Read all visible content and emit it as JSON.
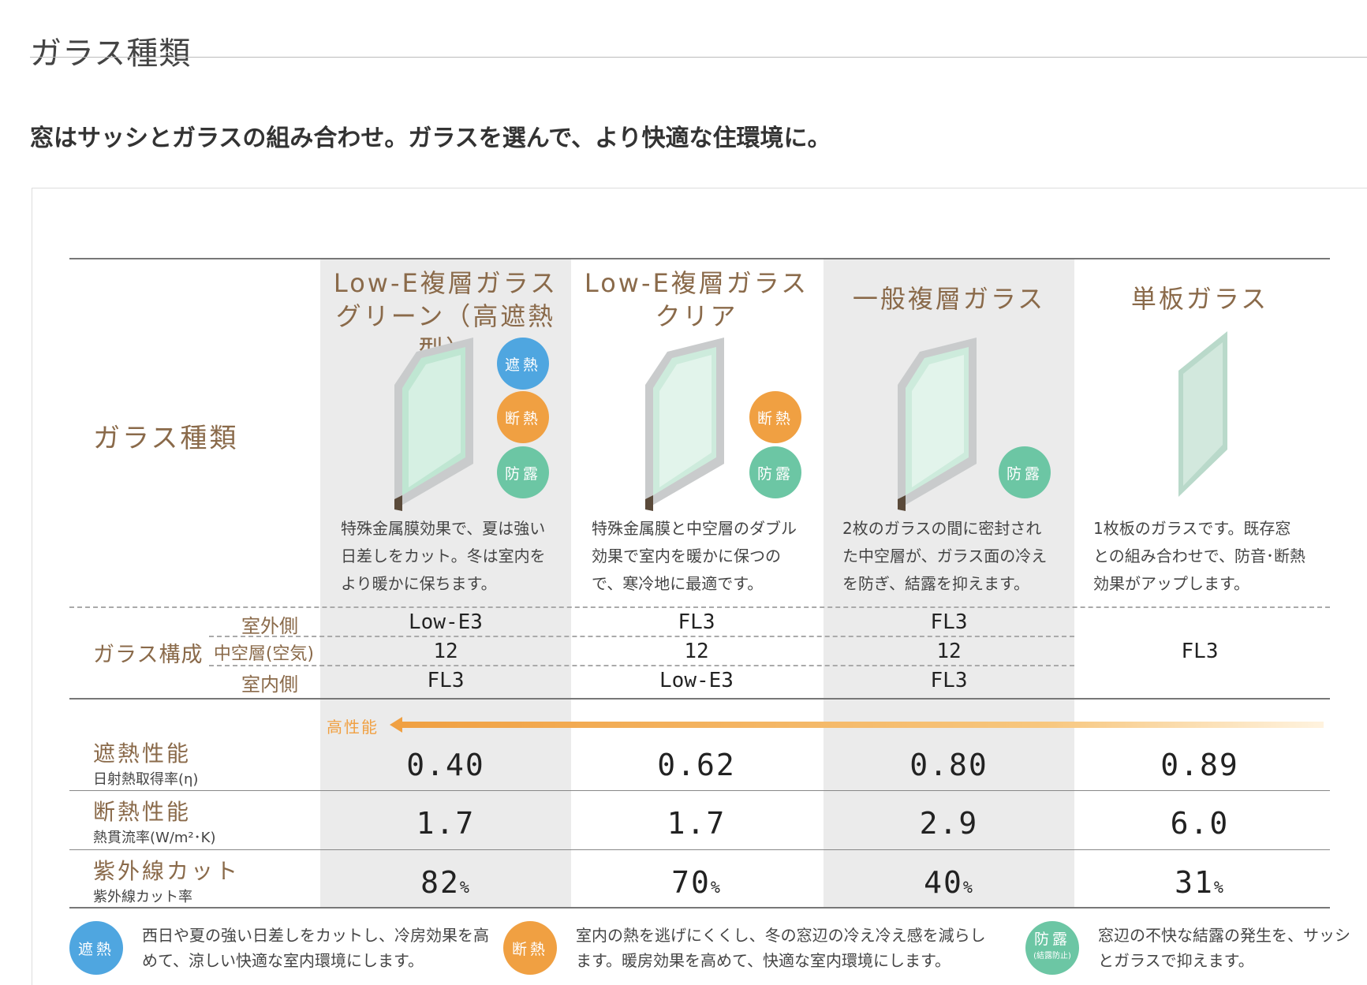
{
  "page_title": "ガラス種類",
  "lead": "窓はサッシとガラスの組み合わせ。ガラスを選んで、より快適な住環境に。",
  "table": {
    "row_head_type": "ガラス種類",
    "row_head_composition": "ガラス構成",
    "composition_labels": {
      "outside": "室外側",
      "middle": "中空層(空気)",
      "inside": "室内側"
    },
    "performance_label": "高性能",
    "columns": [
      {
        "title_line1": "Low-E複層ガラス",
        "title_line2": "グリーン（高遮熱型）",
        "badges": [
          "遮熱",
          "断熱",
          "防露"
        ],
        "desc": "特殊金属膜効果で、夏は強い日差しをカット。冬は室内をより暖かに保ちます。",
        "outside": "Low-E3",
        "middle": "12",
        "inside": "FL3",
        "shading": "0.40",
        "insulation": "1.7",
        "uv_cut": "82",
        "uv_unit": "%"
      },
      {
        "title_line1": "Low-E複層ガラス",
        "title_line2": "クリア",
        "badges": [
          "断熱",
          "防露"
        ],
        "desc": "特殊金属膜と中空層のダブル効果で室内を暖かに保つので、寒冷地に最適です。",
        "outside": "FL3",
        "middle": "12",
        "inside": "Low-E3",
        "shading": "0.62",
        "insulation": "1.7",
        "uv_cut": "70",
        "uv_unit": "%"
      },
      {
        "title_line1": "一般複層ガラス",
        "title_line2": "",
        "badges": [
          "防露"
        ],
        "desc": "2枚のガラスの間に密封された中空層が、ガラス面の冷えを防ぎ、結露を抑えます。",
        "outside": "FL3",
        "middle": "12",
        "inside": "FL3",
        "shading": "0.80",
        "insulation": "2.9",
        "uv_cut": "40",
        "uv_unit": "%"
      },
      {
        "title_line1": "単板ガラス",
        "title_line2": "",
        "badges": [],
        "desc": "1枚板のガラスです。既存窓との組み合わせで、防音･断熱効果がアップします。",
        "single": "FL3",
        "shading": "0.89",
        "insulation": "6.0",
        "uv_cut": "31",
        "uv_unit": "%"
      }
    ],
    "metrics": [
      {
        "name": "遮熱性能",
        "sub": "日射熱取得率(η)"
      },
      {
        "name": "断熱性能",
        "sub": "熱貫流率(W/m²･K)"
      },
      {
        "name": "紫外線カット",
        "sub": "紫外線カット率"
      }
    ]
  },
  "legend": [
    {
      "badge": "遮熱",
      "color": "#4fa6e0",
      "text": "西日や夏の強い日差しをカットし、冷房効果を高めて、涼しい快適な室内環境にします。"
    },
    {
      "badge": "断熱",
      "color": "#f0a042",
      "text": "室内の熱を逃げにくくし、冬の窓辺の冷え冷え感を減らします。暖房効果を高めて、快適な室内環境にします。"
    },
    {
      "badge": "防露",
      "badge_sub": "(結露防止)",
      "color": "#6cc6a4",
      "text": "窓辺の不快な結露の発生を、サッシとガラスで抑えます。"
    }
  ]
}
